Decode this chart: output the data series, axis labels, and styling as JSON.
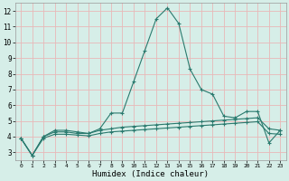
{
  "xlabel": "Humidex (Indice chaleur)",
  "ylabel": "",
  "bg_color": "#d6eee8",
  "grid_color": "#e8b8b8",
  "line_color": "#2a7a6e",
  "xlim": [
    -0.5,
    23.5
  ],
  "ylim": [
    2.5,
    12.5
  ],
  "yticks": [
    3,
    4,
    5,
    6,
    7,
    8,
    9,
    10,
    11,
    12
  ],
  "xticks": [
    0,
    1,
    2,
    3,
    4,
    5,
    6,
    7,
    8,
    9,
    10,
    11,
    12,
    13,
    14,
    15,
    16,
    17,
    18,
    19,
    20,
    21,
    22,
    23
  ],
  "series1_y": [
    3.9,
    2.8,
    4.0,
    4.4,
    4.4,
    4.3,
    4.2,
    4.5,
    5.5,
    5.5,
    7.5,
    9.5,
    11.5,
    12.2,
    11.2,
    8.3,
    7.0,
    6.7,
    5.3,
    5.2,
    5.6,
    5.6,
    3.6,
    4.4
  ],
  "series2_y": [
    3.9,
    2.8,
    4.0,
    4.3,
    4.3,
    4.2,
    4.2,
    4.4,
    4.5,
    4.6,
    4.65,
    4.7,
    4.75,
    4.8,
    4.85,
    4.9,
    4.95,
    5.0,
    5.05,
    5.1,
    5.15,
    5.2,
    4.5,
    4.4
  ],
  "series3_y": [
    3.9,
    2.8,
    3.9,
    4.15,
    4.15,
    4.1,
    4.05,
    4.2,
    4.3,
    4.35,
    4.4,
    4.45,
    4.5,
    4.55,
    4.6,
    4.65,
    4.7,
    4.75,
    4.8,
    4.85,
    4.9,
    4.95,
    4.2,
    4.15
  ]
}
